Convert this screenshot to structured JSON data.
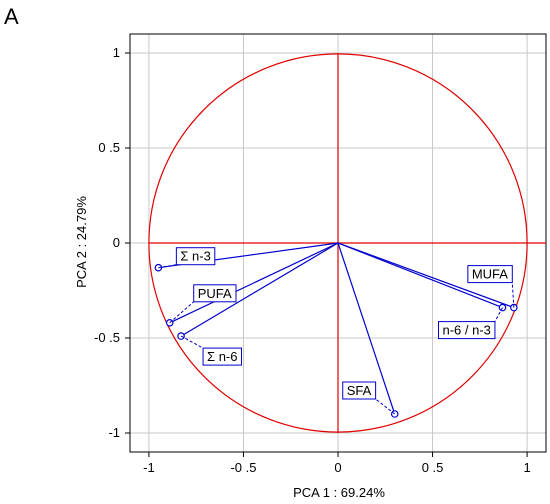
{
  "panel_letter": "A",
  "chart_data": {
    "type": "scatter",
    "subtype": "pca-correlation-circle",
    "xlabel": "PCA 1 : 69.24%",
    "ylabel": "PCA 2 : 24.79%",
    "xlim": [
      -1.1,
      1.1
    ],
    "ylim": [
      -1.1,
      1.1
    ],
    "x_ticks": [
      -1,
      -0.5,
      0,
      0.5,
      1
    ],
    "y_ticks": [
      -1,
      -0.5,
      0,
      0.5,
      1
    ],
    "x_tick_labels": [
      "-1",
      "-0 .5",
      "0",
      "0 .5",
      "1"
    ],
    "y_tick_labels": [
      "1",
      "0 .5",
      "0",
      "-0 .5",
      "-1"
    ],
    "grid": true,
    "unit_circle_radius": 1,
    "circle_color": "#e00000",
    "vector_color": "#0000cc",
    "variables": [
      {
        "label": "Σ n-3",
        "x": -0.95,
        "y": -0.13
      },
      {
        "label": "PUFA",
        "x": -0.89,
        "y": -0.42
      },
      {
        "label": "Σ n-6",
        "x": -0.83,
        "y": -0.49
      },
      {
        "label": "SFA",
        "x": 0.3,
        "y": -0.9
      },
      {
        "label": "MUFA",
        "x": 0.93,
        "y": -0.34
      },
      {
        "label": "n-6 / n-3",
        "x": 0.87,
        "y": -0.34
      }
    ]
  }
}
